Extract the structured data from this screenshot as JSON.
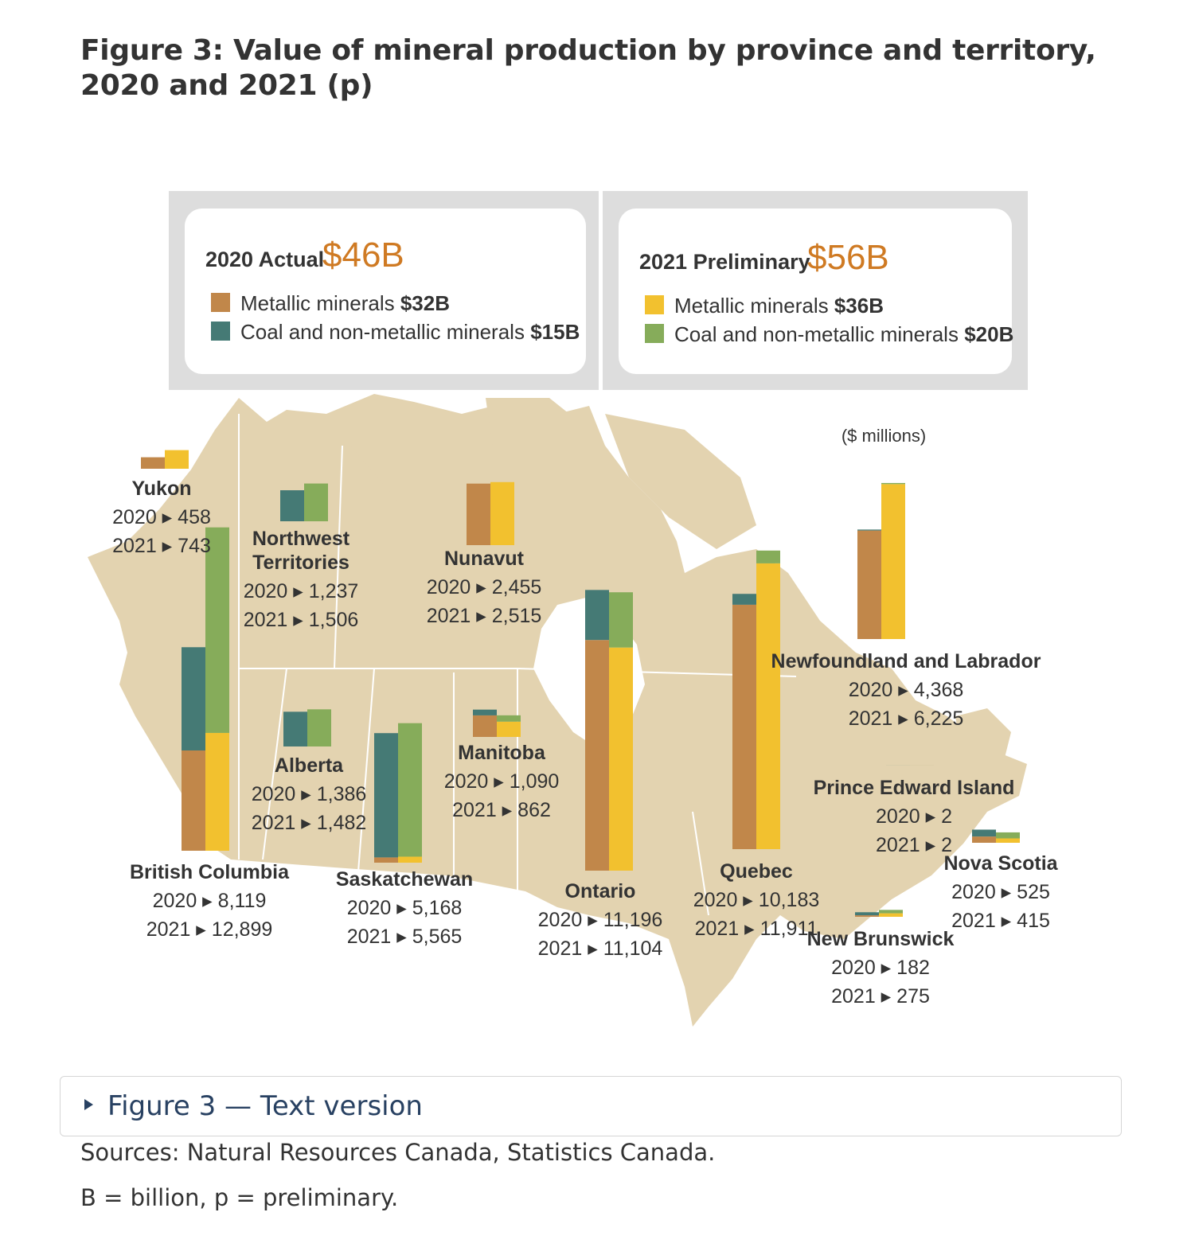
{
  "title": "Figure 3: Value of mineral production by province and territory, 2020 and 2021 (p)",
  "legend": {
    "y2020": {
      "label": "2020 Actual",
      "total": "$46B",
      "items": [
        {
          "name": "Metallic minerals",
          "amount": "$32B",
          "color": "#c1874a"
        },
        {
          "name": "Coal and non-metallic minerals",
          "amount": "$15B",
          "color": "#457a75"
        }
      ]
    },
    "y2021": {
      "label": "2021 Preliminary",
      "total": "$56B",
      "items": [
        {
          "name": "Metallic minerals",
          "amount": "$36B",
          "color": "#f2c12f"
        },
        {
          "name": "Coal and non-metallic minerals",
          "amount": "$20B",
          "color": "#86ac5a"
        }
      ]
    }
  },
  "units": "($ millions)",
  "colors": {
    "metal2020": "#c1874a",
    "nonmetal2020": "#457a75",
    "metal2021": "#f2c12f",
    "nonmetal2021": "#86ac5a",
    "land": "#e3d3b0",
    "total_accent": "#cf7a23",
    "link": "#284162"
  },
  "chart_data": {
    "type": "bar",
    "title": "Figure 3: Value of mineral production by province and territory, 2020 and 2021 (p)",
    "units": "$ millions",
    "categories": [
      "Yukon",
      "Northwest Territories",
      "Nunavut",
      "British Columbia",
      "Alberta",
      "Saskatchewan",
      "Manitoba",
      "Ontario",
      "Quebec",
      "Newfoundland and Labrador",
      "Prince Edward Island",
      "New Brunswick",
      "Nova Scotia"
    ],
    "series": [
      {
        "name": "2020",
        "values": [
          458,
          1237,
          2455,
          8119,
          1386,
          5168,
          1090,
          11196,
          10183,
          4368,
          2,
          182,
          525
        ]
      },
      {
        "name": "2021",
        "values": [
          743,
          1506,
          2515,
          12899,
          1482,
          5565,
          862,
          11104,
          11911,
          6225,
          2,
          275,
          415
        ]
      }
    ],
    "totals": {
      "2020": "$46B",
      "2021": "$56B"
    }
  },
  "regions": [
    {
      "name": "Yukon",
      "label_lines": [
        "Yukon"
      ],
      "v2020": "458",
      "v2021": "743",
      "m2020": 458,
      "n2020": 0,
      "m2021": 743,
      "n2021": 0
    },
    {
      "name": "Northwest Territories",
      "label_lines": [
        "Northwest",
        "Territories"
      ],
      "v2020": "1,237",
      "v2021": "1,506",
      "m2020": 0,
      "n2020": 1237,
      "m2021": 0,
      "n2021": 1506
    },
    {
      "name": "Nunavut",
      "label_lines": [
        "Nunavut"
      ],
      "v2020": "2,455",
      "v2021": "2,515",
      "m2020": 2455,
      "n2020": 0,
      "m2021": 2515,
      "n2021": 0
    },
    {
      "name": "British Columbia",
      "label_lines": [
        "British Columbia"
      ],
      "v2020": "8,119",
      "v2021": "12,899",
      "m2020": 4000,
      "n2020": 4119,
      "m2021": 4700,
      "n2021": 8199
    },
    {
      "name": "Alberta",
      "label_lines": [
        "Alberta"
      ],
      "v2020": "1,386",
      "v2021": "1,482",
      "m2020": 0,
      "n2020": 1386,
      "m2021": 0,
      "n2021": 1482
    },
    {
      "name": "Saskatchewan",
      "label_lines": [
        "Saskatchewan"
      ],
      "v2020": "5,168",
      "v2021": "5,565",
      "m2020": 210,
      "n2020": 4958,
      "m2021": 240,
      "n2021": 5325
    },
    {
      "name": "Manitoba",
      "label_lines": [
        "Manitoba"
      ],
      "v2020": "1,090",
      "v2021": "862",
      "m2020": 860,
      "n2020": 230,
      "m2021": 610,
      "n2021": 252
    },
    {
      "name": "Ontario",
      "label_lines": [
        "Ontario"
      ],
      "v2020": "11,196",
      "v2021": "11,104",
      "m2020": 9200,
      "n2020": 1996,
      "m2021": 8900,
      "n2021": 2204
    },
    {
      "name": "Quebec",
      "label_lines": [
        "Quebec"
      ],
      "v2020": "10,183",
      "v2021": "11,911",
      "m2020": 9750,
      "n2020": 433,
      "m2021": 11400,
      "n2021": 511
    },
    {
      "name": "Newfoundland and Labrador",
      "label_lines": [
        "Newfoundland and Labrador"
      ],
      "v2020": "4,368",
      "v2021": "6,225",
      "m2020": 4330,
      "n2020": 38,
      "m2021": 6180,
      "n2021": 45
    },
    {
      "name": "Prince Edward Island",
      "label_lines": [
        "Prince Edward Island"
      ],
      "v2020": "2",
      "v2021": "2",
      "m2020": 0,
      "n2020": 2,
      "m2021": 0,
      "n2021": 2
    },
    {
      "name": "New Brunswick",
      "label_lines": [
        "New Brunswick"
      ],
      "v2020": "182",
      "v2021": "275",
      "m2020": 60,
      "n2020": 122,
      "m2021": 140,
      "n2021": 135
    },
    {
      "name": "Nova Scotia",
      "label_lines": [
        "Nova Scotia"
      ],
      "v2020": "525",
      "v2021": "415",
      "m2020": 250,
      "n2020": 275,
      "m2021": 175,
      "n2021": 240
    }
  ],
  "text_version": "Figure 3 — Text version",
  "notes": {
    "sources": "Sources: Natural Resources Canada, Statistics Canada.",
    "abbrev": "B = billion, p = preliminary."
  }
}
